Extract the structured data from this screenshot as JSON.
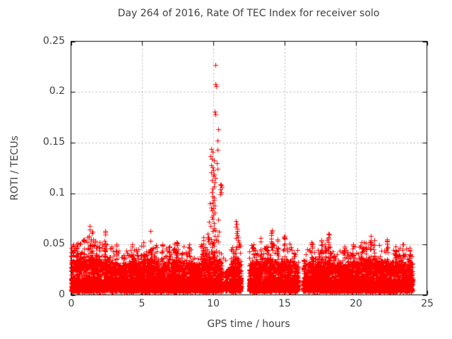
{
  "page": {
    "background": "#ffffff"
  },
  "chart_data": {
    "type": "scatter",
    "title": "Day 264 of 2016, Rate Of TEC Index for receiver solo",
    "xlabel": "GPS time / hours",
    "ylabel": "ROTI / TECUs",
    "xlim": [
      0,
      25
    ],
    "ylim": [
      0,
      0.25
    ],
    "xticks": [
      0,
      5,
      10,
      15,
      20,
      25
    ],
    "xtick_labels": [
      "0",
      "5",
      "10",
      "15",
      "20",
      "25"
    ],
    "yticks": [
      0,
      0.05,
      0.1,
      0.15,
      0.2,
      0.25
    ],
    "ytick_labels": [
      "0",
      "0.05",
      "0.1",
      "0.15",
      "0.2",
      "0.25"
    ],
    "grid": true,
    "grid_color": "#b0b0b0",
    "axis_color": "#000000",
    "text_color": "#404040",
    "legend_position": "none",
    "series": [
      {
        "name": "ROTI",
        "marker": "plus",
        "marker_size": 7,
        "color": "#ff0000",
        "data_hours_extent": [
          0,
          24
        ],
        "segments": [
          [
            0,
            10.55,
            500
          ],
          [
            10.55,
            11.15,
            170
          ],
          [
            11.2,
            11.95,
            500
          ],
          [
            12.5,
            15.95,
            500
          ],
          [
            16.3,
            24,
            500
          ]
        ],
        "gaps": [
          [
            11.95,
            12.5
          ],
          [
            15.95,
            16.3
          ]
        ],
        "envelope": [
          [
            0,
            0.046
          ],
          [
            0.5,
            0.05
          ],
          [
            1,
            0.054
          ],
          [
            1.3,
            0.058
          ],
          [
            1.7,
            0.052
          ],
          [
            2.2,
            0.048
          ],
          [
            2.5,
            0.052
          ],
          [
            3,
            0.044
          ],
          [
            3.6,
            0.042
          ],
          [
            4.2,
            0.046
          ],
          [
            5,
            0.046
          ],
          [
            5.6,
            0.052
          ],
          [
            6.2,
            0.044
          ],
          [
            7,
            0.046
          ],
          [
            7.5,
            0.05
          ],
          [
            8,
            0.045
          ],
          [
            8.6,
            0.042
          ],
          [
            9.2,
            0.05
          ],
          [
            9.6,
            0.053
          ],
          [
            10,
            0.055
          ],
          [
            10.4,
            0.05
          ],
          [
            10.7,
            0.035
          ],
          [
            11,
            0.032
          ],
          [
            11.3,
            0.048
          ],
          [
            11.6,
            0.055
          ],
          [
            11.9,
            0.048
          ],
          [
            12.6,
            0.048
          ],
          [
            13,
            0.044
          ],
          [
            13.5,
            0.048
          ],
          [
            14,
            0.052
          ],
          [
            14.6,
            0.044
          ],
          [
            15,
            0.05
          ],
          [
            15.6,
            0.048
          ],
          [
            15.9,
            0.042
          ],
          [
            16.4,
            0.042
          ],
          [
            17,
            0.048
          ],
          [
            17.5,
            0.046
          ],
          [
            18,
            0.052
          ],
          [
            18.6,
            0.044
          ],
          [
            19.2,
            0.042
          ],
          [
            19.8,
            0.046
          ],
          [
            20.3,
            0.048
          ],
          [
            21,
            0.052
          ],
          [
            21.5,
            0.047
          ],
          [
            22,
            0.05
          ],
          [
            22.6,
            0.044
          ],
          [
            23,
            0.048
          ],
          [
            23.5,
            0.044
          ],
          [
            24,
            0.042
          ]
        ],
        "peaks": [
          [
            0.15,
            0.05
          ],
          [
            0.4,
            0.048
          ],
          [
            0.9,
            0.055
          ],
          [
            1.3,
            0.068
          ],
          [
            1.5,
            0.062
          ],
          [
            2,
            0.052
          ],
          [
            2.4,
            0.063
          ],
          [
            3.2,
            0.05
          ],
          [
            4.3,
            0.05
          ],
          [
            5.1,
            0.052
          ],
          [
            5.6,
            0.063
          ],
          [
            6.4,
            0.05
          ],
          [
            6.9,
            0.048
          ],
          [
            7.4,
            0.052
          ],
          [
            8.3,
            0.05
          ],
          [
            9.3,
            0.057
          ],
          [
            12.8,
            0.05
          ],
          [
            13.3,
            0.056
          ],
          [
            13.8,
            0.048
          ],
          [
            14.1,
            0.064
          ],
          [
            14.5,
            0.055
          ],
          [
            15,
            0.058
          ],
          [
            16.9,
            0.052
          ],
          [
            17.6,
            0.054
          ],
          [
            18.1,
            0.06
          ],
          [
            19.2,
            0.048
          ],
          [
            19.8,
            0.05
          ],
          [
            20.4,
            0.052
          ],
          [
            21.05,
            0.058
          ],
          [
            21.3,
            0.054
          ],
          [
            22.2,
            0.055
          ],
          [
            22.8,
            0.048
          ],
          [
            23.3,
            0.05
          ],
          [
            23.8,
            0.046
          ]
        ],
        "spike_points": [
          [
            10.12,
            0.227
          ],
          [
            10.14,
            0.208
          ],
          [
            10.17,
            0.206
          ],
          [
            10.11,
            0.181
          ],
          [
            10.15,
            0.178
          ],
          [
            10.34,
            0.163
          ],
          [
            10.28,
            0.152
          ],
          [
            10.3,
            0.143
          ],
          [
            9.86,
            0.144
          ],
          [
            9.96,
            0.141
          ],
          [
            9.82,
            0.137
          ],
          [
            9.92,
            0.134
          ],
          [
            10.02,
            0.133
          ],
          [
            10.22,
            0.13
          ],
          [
            9.87,
            0.128
          ],
          [
            9.93,
            0.126
          ],
          [
            10.27,
            0.124
          ],
          [
            9.83,
            0.121
          ],
          [
            9.99,
            0.123
          ],
          [
            10.05,
            0.119
          ],
          [
            10,
            0.117
          ],
          [
            10.12,
            0.115
          ],
          [
            9.9,
            0.113
          ],
          [
            10.09,
            0.111
          ],
          [
            10.47,
            0.109
          ],
          [
            10.52,
            0.108
          ],
          [
            10.04,
            0.107
          ],
          [
            10.57,
            0.106
          ],
          [
            9.94,
            0.105
          ],
          [
            10.5,
            0.104
          ],
          [
            10.53,
            0.101
          ],
          [
            10.49,
            0.099
          ],
          [
            9.91,
            0.101
          ],
          [
            9.97,
            0.097
          ],
          [
            10.02,
            0.096
          ],
          [
            10.06,
            0.094
          ],
          [
            9.95,
            0.091
          ],
          [
            9.76,
            0.09
          ],
          [
            10.08,
            0.088
          ],
          [
            9.86,
            0.086
          ],
          [
            9.98,
            0.085
          ],
          [
            9.91,
            0.083
          ],
          [
            10.07,
            0.081
          ],
          [
            10.01,
            0.079
          ],
          [
            9.89,
            0.077
          ],
          [
            9.97,
            0.075
          ],
          [
            10.36,
            0.074
          ],
          [
            9.71,
            0.072
          ],
          [
            10.03,
            0.071
          ],
          [
            9.79,
            0.068
          ],
          [
            10.06,
            0.066
          ],
          [
            10.16,
            0.064
          ],
          [
            9.93,
            0.063
          ],
          [
            10.41,
            0.062
          ],
          [
            9.62,
            0.06
          ],
          [
            10.31,
            0.058
          ],
          [
            10.11,
            0.058
          ],
          [
            9.67,
            0.057
          ],
          [
            9.85,
            0.055
          ],
          [
            10.21,
            0.055
          ],
          [
            11.58,
            0.073
          ],
          [
            11.62,
            0.07
          ],
          [
            11.6,
            0.067
          ],
          [
            11.66,
            0.065
          ],
          [
            11.7,
            0.063
          ],
          [
            11.61,
            0.061
          ],
          [
            11.68,
            0.059
          ],
          [
            11.74,
            0.057
          ],
          [
            11.57,
            0.056
          ],
          [
            11.72,
            0.054
          ],
          [
            11.79,
            0.052
          ],
          [
            11.83,
            0.05
          ],
          [
            11.64,
            0.048
          ],
          [
            11.76,
            0.047
          ]
        ],
        "edge_points": [
          [
            0,
            0.046
          ],
          [
            0,
            0.042
          ],
          [
            0,
            0.038
          ],
          [
            0,
            0.034
          ],
          [
            0,
            0.03
          ],
          [
            0,
            0.027
          ],
          [
            0,
            0.024
          ],
          [
            0,
            0.02
          ],
          [
            0,
            0.016
          ]
        ]
      }
    ]
  }
}
